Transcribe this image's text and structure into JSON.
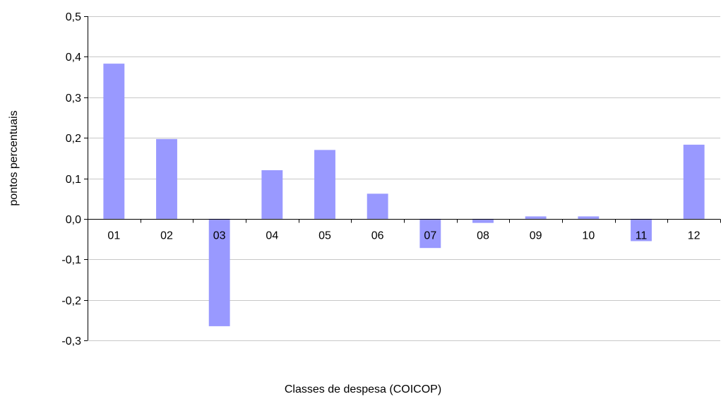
{
  "chart_data": {
    "type": "bar",
    "title": "",
    "xlabel": "Classes de despesa (COICOP)",
    "ylabel": "pontos percentuais",
    "categories": [
      "01",
      "02",
      "03",
      "04",
      "05",
      "06",
      "07",
      "08",
      "09",
      "10",
      "11",
      "12"
    ],
    "values": [
      0.383,
      0.197,
      -0.265,
      0.12,
      0.17,
      0.062,
      -0.072,
      -0.01,
      0.006,
      0.006,
      -0.055,
      0.183
    ],
    "ylim": [
      -0.3,
      0.5
    ],
    "yticks": [
      0.5,
      0.4,
      0.3,
      0.2,
      0.1,
      0.0,
      -0.1,
      -0.2,
      -0.3
    ],
    "ytick_labels": [
      "0,5",
      "0,4",
      "0,3",
      "0,2",
      "0,1",
      "0,0",
      "-0,1",
      "-0,2",
      "-0,3"
    ],
    "grid": true,
    "legend": "none",
    "colors": {
      "bar": "#9999ff",
      "grid": "#c8c8c8",
      "axis": "#000000"
    }
  }
}
